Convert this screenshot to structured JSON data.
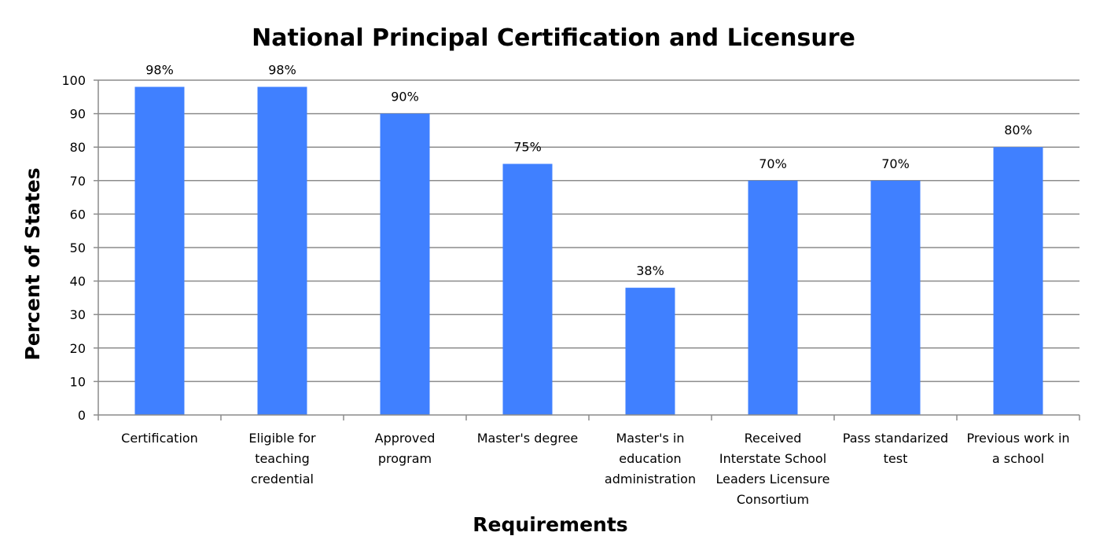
{
  "chart_data": {
    "type": "bar",
    "title": "National Principal Certification and Licensure",
    "xlabel": "Requirements",
    "ylabel": "Percent of States",
    "categories": [
      "Certification",
      "Eligible for teaching credential",
      "Approved program",
      "Master's degree",
      "Master's in education administration",
      "Received Interstate School Leaders Licensure Consortium",
      "Pass standarized test",
      "Previous work in a school"
    ],
    "category_label_lines": [
      [
        "Certification"
      ],
      [
        "Eligible for",
        "teaching",
        "credential"
      ],
      [
        "Approved",
        "program"
      ],
      [
        "Master's degree"
      ],
      [
        "Master's in",
        "education",
        "administration"
      ],
      [
        "Received",
        "Interstate School",
        "Leaders Licensure",
        "Consortium"
      ],
      [
        "Pass standarized",
        "test"
      ],
      [
        "Previous work in",
        "a school"
      ]
    ],
    "values": [
      98,
      98,
      90,
      75,
      38,
      70,
      70,
      80
    ],
    "data_labels": [
      "98%",
      "98%",
      "90%",
      "75%",
      "38%",
      "70%",
      "70%",
      "80%"
    ],
    "ylim": [
      0,
      100
    ],
    "yticks": [
      0,
      10,
      20,
      30,
      40,
      50,
      60,
      70,
      80,
      90,
      100
    ],
    "grid": true,
    "legend": "none",
    "colors": {
      "bar": "#4080FF",
      "grid": "#8C8C8C",
      "axis": "#8C8C8C"
    }
  }
}
